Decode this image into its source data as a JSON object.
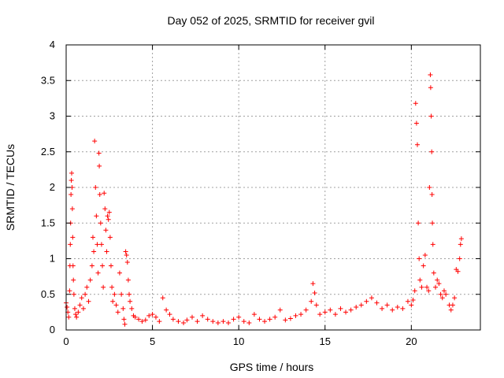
{
  "chart_data": {
    "type": "scatter",
    "title": "Day 052 of 2025, SRMTID for receiver gvil",
    "xlabel": "GPS time / hours",
    "ylabel": "SRMTID / TECUs",
    "xlim": [
      0,
      24
    ],
    "ylim": [
      0,
      4
    ],
    "xticks": [
      0,
      5,
      10,
      15,
      20
    ],
    "yticks": [
      0,
      0.5,
      1,
      1.5,
      2,
      2.5,
      3,
      3.5,
      4
    ],
    "ytick_labels": [
      "0",
      "0.5",
      "1",
      "1.5",
      "2",
      "2.5",
      "3",
      "3.5",
      "4"
    ],
    "grid": true,
    "marker": "+",
    "color": "#ff0000",
    "series": [
      {
        "name": "SRMTID",
        "points": [
          [
            0.0,
            0.38
          ],
          [
            0.05,
            0.32
          ],
          [
            0.1,
            0.25
          ],
          [
            0.15,
            0.18
          ],
          [
            0.2,
            0.55
          ],
          [
            0.22,
            0.9
          ],
          [
            0.24,
            1.2
          ],
          [
            0.26,
            1.5
          ],
          [
            0.28,
            1.9
          ],
          [
            0.3,
            2.1
          ],
          [
            0.32,
            2.2
          ],
          [
            0.34,
            2.0
          ],
          [
            0.36,
            1.7
          ],
          [
            0.38,
            1.3
          ],
          [
            0.4,
            0.9
          ],
          [
            0.42,
            0.7
          ],
          [
            0.45,
            0.5
          ],
          [
            0.5,
            0.3
          ],
          [
            0.55,
            0.22
          ],
          [
            0.6,
            0.18
          ],
          [
            0.7,
            0.25
          ],
          [
            0.8,
            0.35
          ],
          [
            0.9,
            0.45
          ],
          [
            1.0,
            0.3
          ],
          [
            1.1,
            0.5
          ],
          [
            1.2,
            0.6
          ],
          [
            1.3,
            0.4
          ],
          [
            1.4,
            0.7
          ],
          [
            1.5,
            0.9
          ],
          [
            1.55,
            1.3
          ],
          [
            1.6,
            1.1
          ],
          [
            1.65,
            2.65
          ],
          [
            1.7,
            2.0
          ],
          [
            1.75,
            1.6
          ],
          [
            1.8,
            1.2
          ],
          [
            1.85,
            0.8
          ],
          [
            1.9,
            2.48
          ],
          [
            1.92,
            2.3
          ],
          [
            1.95,
            1.9
          ],
          [
            2.0,
            1.5
          ],
          [
            2.05,
            1.2
          ],
          [
            2.1,
            0.9
          ],
          [
            2.15,
            0.6
          ],
          [
            2.2,
            1.92
          ],
          [
            2.25,
            1.7
          ],
          [
            2.3,
            1.4
          ],
          [
            2.35,
            1.1
          ],
          [
            2.4,
            1.6
          ],
          [
            2.45,
            1.55
          ],
          [
            2.5,
            1.65
          ],
          [
            2.55,
            1.3
          ],
          [
            2.6,
            0.9
          ],
          [
            2.65,
            0.6
          ],
          [
            2.7,
            0.4
          ],
          [
            2.8,
            0.5
          ],
          [
            2.9,
            0.35
          ],
          [
            3.0,
            0.25
          ],
          [
            3.1,
            0.8
          ],
          [
            3.2,
            0.5
          ],
          [
            3.3,
            0.3
          ],
          [
            3.35,
            0.15
          ],
          [
            3.4,
            0.08
          ],
          [
            3.45,
            1.1
          ],
          [
            3.5,
            1.05
          ],
          [
            3.55,
            0.95
          ],
          [
            3.6,
            0.7
          ],
          [
            3.65,
            0.5
          ],
          [
            3.7,
            0.4
          ],
          [
            3.8,
            0.3
          ],
          [
            3.9,
            0.2
          ],
          [
            4.0,
            0.18
          ],
          [
            4.2,
            0.15
          ],
          [
            4.4,
            0.12
          ],
          [
            4.6,
            0.14
          ],
          [
            4.8,
            0.2
          ],
          [
            5.0,
            0.22
          ],
          [
            5.2,
            0.18
          ],
          [
            5.4,
            0.12
          ],
          [
            5.6,
            0.45
          ],
          [
            5.8,
            0.28
          ],
          [
            6.0,
            0.22
          ],
          [
            6.2,
            0.15
          ],
          [
            6.5,
            0.12
          ],
          [
            6.8,
            0.1
          ],
          [
            7.0,
            0.14
          ],
          [
            7.3,
            0.18
          ],
          [
            7.6,
            0.12
          ],
          [
            7.9,
            0.2
          ],
          [
            8.2,
            0.15
          ],
          [
            8.5,
            0.12
          ],
          [
            8.8,
            0.1
          ],
          [
            9.1,
            0.12
          ],
          [
            9.4,
            0.1
          ],
          [
            9.7,
            0.15
          ],
          [
            10.0,
            0.18
          ],
          [
            10.3,
            0.12
          ],
          [
            10.6,
            0.1
          ],
          [
            10.9,
            0.22
          ],
          [
            11.2,
            0.15
          ],
          [
            11.5,
            0.12
          ],
          [
            11.8,
            0.15
          ],
          [
            12.1,
            0.18
          ],
          [
            12.4,
            0.28
          ],
          [
            12.7,
            0.14
          ],
          [
            13.0,
            0.16
          ],
          [
            13.3,
            0.2
          ],
          [
            13.6,
            0.22
          ],
          [
            13.9,
            0.28
          ],
          [
            14.2,
            0.4
          ],
          [
            14.3,
            0.65
          ],
          [
            14.4,
            0.52
          ],
          [
            14.5,
            0.35
          ],
          [
            14.7,
            0.22
          ],
          [
            15.0,
            0.25
          ],
          [
            15.3,
            0.28
          ],
          [
            15.6,
            0.22
          ],
          [
            15.9,
            0.3
          ],
          [
            16.2,
            0.25
          ],
          [
            16.5,
            0.28
          ],
          [
            16.8,
            0.32
          ],
          [
            17.1,
            0.35
          ],
          [
            17.4,
            0.4
          ],
          [
            17.7,
            0.45
          ],
          [
            18.0,
            0.38
          ],
          [
            18.3,
            0.3
          ],
          [
            18.6,
            0.35
          ],
          [
            18.9,
            0.28
          ],
          [
            19.2,
            0.32
          ],
          [
            19.5,
            0.3
          ],
          [
            19.8,
            0.4
          ],
          [
            20.0,
            0.35
          ],
          [
            20.1,
            0.42
          ],
          [
            20.2,
            0.55
          ],
          [
            20.25,
            3.18
          ],
          [
            20.3,
            2.9
          ],
          [
            20.35,
            2.6
          ],
          [
            20.4,
            1.5
          ],
          [
            20.45,
            1.0
          ],
          [
            20.5,
            0.7
          ],
          [
            20.6,
            0.6
          ],
          [
            20.7,
            0.9
          ],
          [
            20.8,
            1.05
          ],
          [
            20.9,
            0.6
          ],
          [
            21.0,
            0.55
          ],
          [
            21.05,
            2.0
          ],
          [
            21.1,
            3.58
          ],
          [
            21.12,
            3.4
          ],
          [
            21.15,
            3.0
          ],
          [
            21.18,
            2.5
          ],
          [
            21.2,
            1.9
          ],
          [
            21.22,
            1.5
          ],
          [
            21.25,
            1.2
          ],
          [
            21.3,
            0.8
          ],
          [
            21.4,
            0.6
          ],
          [
            21.5,
            0.7
          ],
          [
            21.6,
            0.65
          ],
          [
            21.7,
            0.5
          ],
          [
            21.8,
            0.45
          ],
          [
            21.9,
            0.55
          ],
          [
            22.0,
            0.5
          ],
          [
            22.2,
            0.35
          ],
          [
            22.3,
            0.28
          ],
          [
            22.4,
            0.35
          ],
          [
            22.5,
            0.45
          ],
          [
            22.6,
            0.85
          ],
          [
            22.7,
            0.82
          ],
          [
            22.8,
            1.0
          ],
          [
            22.85,
            1.2
          ],
          [
            22.9,
            1.28
          ]
        ]
      }
    ]
  }
}
